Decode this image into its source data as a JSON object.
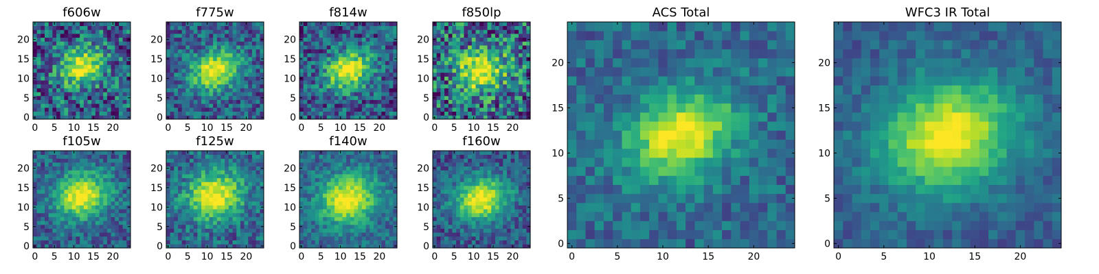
{
  "chart_data": [
    {
      "type": "heatmap",
      "title": "f606w",
      "x_ticks": [
        "0",
        "5",
        "10",
        "15",
        "20"
      ],
      "y_ticks": [
        "0",
        "5",
        "10",
        "15",
        "20"
      ],
      "xlim": [
        -0.5,
        24.5
      ],
      "ylim": [
        -0.5,
        24.5
      ],
      "grid": false,
      "colormap": "viridis",
      "peak": [
        12,
        13
      ],
      "sigma": [
        4.2,
        3.2
      ],
      "tilt": 0.45,
      "noise": 0.34,
      "bg": 0.32,
      "seed": 11
    },
    {
      "type": "heatmap",
      "title": "f775w",
      "x_ticks": [
        "0",
        "5",
        "10",
        "15",
        "20"
      ],
      "y_ticks": [
        "0",
        "5",
        "10",
        "15",
        "20"
      ],
      "xlim": [
        -0.5,
        24.5
      ],
      "ylim": [
        -0.5,
        24.5
      ],
      "grid": false,
      "colormap": "viridis",
      "peak": [
        12,
        12
      ],
      "sigma": [
        4.6,
        3.4
      ],
      "tilt": 0.45,
      "noise": 0.24,
      "bg": 0.3,
      "seed": 23
    },
    {
      "type": "heatmap",
      "title": "f814w",
      "x_ticks": [
        "0",
        "5",
        "10",
        "15",
        "20"
      ],
      "y_ticks": [
        "0",
        "5",
        "10",
        "15",
        "20"
      ],
      "xlim": [
        -0.5,
        24.5
      ],
      "ylim": [
        -0.5,
        24.5
      ],
      "grid": false,
      "colormap": "viridis",
      "peak": [
        12,
        12
      ],
      "sigma": [
        4.4,
        3.4
      ],
      "tilt": 0.45,
      "noise": 0.28,
      "bg": 0.28,
      "seed": 37
    },
    {
      "type": "heatmap",
      "title": "f850lp",
      "x_ticks": [
        "0",
        "5",
        "10",
        "15",
        "20"
      ],
      "y_ticks": [
        "0",
        "5",
        "10",
        "15",
        "20"
      ],
      "xlim": [
        -0.5,
        24.5
      ],
      "ylim": [
        -0.5,
        24.5
      ],
      "grid": false,
      "colormap": "viridis",
      "peak": [
        12,
        12
      ],
      "sigma": [
        4.6,
        3.8
      ],
      "tilt": 0.3,
      "noise": 0.4,
      "bg": 0.34,
      "seed": 41
    },
    {
      "type": "heatmap",
      "title": "f105w",
      "x_ticks": [
        "0",
        "5",
        "10",
        "15",
        "20"
      ],
      "y_ticks": [
        "0",
        "5",
        "10",
        "15",
        "20"
      ],
      "xlim": [
        -0.5,
        24.5
      ],
      "ylim": [
        -0.5,
        24.5
      ],
      "grid": false,
      "colormap": "viridis",
      "peak": [
        12,
        13
      ],
      "sigma": [
        5.0,
        4.2
      ],
      "tilt": 0.3,
      "noise": 0.2,
      "bg": 0.3,
      "seed": 53
    },
    {
      "type": "heatmap",
      "title": "f125w",
      "x_ticks": [
        "0",
        "5",
        "10",
        "15",
        "20"
      ],
      "y_ticks": [
        "0",
        "5",
        "10",
        "15",
        "20"
      ],
      "xlim": [
        -0.5,
        24.5
      ],
      "ylim": [
        -0.5,
        24.5
      ],
      "grid": false,
      "colormap": "viridis",
      "peak": [
        12,
        13
      ],
      "sigma": [
        5.2,
        4.4
      ],
      "tilt": 0.3,
      "noise": 0.22,
      "bg": 0.32,
      "seed": 67
    },
    {
      "type": "heatmap",
      "title": "f140w",
      "x_ticks": [
        "0",
        "5",
        "10",
        "15",
        "20"
      ],
      "y_ticks": [
        "0",
        "5",
        "10",
        "15",
        "20"
      ],
      "xlim": [
        -0.5,
        24.5
      ],
      "ylim": [
        -0.5,
        24.5
      ],
      "grid": false,
      "colormap": "viridis",
      "peak": [
        12,
        12
      ],
      "sigma": [
        5.2,
        4.4
      ],
      "tilt": 0.3,
      "noise": 0.18,
      "bg": 0.34,
      "seed": 71
    },
    {
      "type": "heatmap",
      "title": "f160w",
      "x_ticks": [
        "0",
        "5",
        "10",
        "15",
        "20"
      ],
      "y_ticks": [
        "0",
        "5",
        "10",
        "15",
        "20"
      ],
      "xlim": [
        -0.5,
        24.5
      ],
      "ylim": [
        -0.5,
        24.5
      ],
      "grid": false,
      "colormap": "viridis",
      "peak": [
        12,
        12
      ],
      "sigma": [
        5.0,
        4.0
      ],
      "tilt": 0.3,
      "noise": 0.2,
      "bg": 0.26,
      "seed": 83
    },
    {
      "type": "heatmap",
      "title": "ACS Total",
      "x_ticks": [
        "0",
        "5",
        "10",
        "15",
        "20"
      ],
      "y_ticks": [
        "0",
        "5",
        "10",
        "15",
        "20"
      ],
      "xlim": [
        -0.5,
        24.5
      ],
      "ylim": [
        -0.5,
        24.5
      ],
      "grid": false,
      "colormap": "viridis",
      "peak": [
        12,
        12
      ],
      "sigma": [
        4.4,
        3.2
      ],
      "tilt": 0.45,
      "noise": 0.16,
      "bg": 0.34,
      "seed": 97
    },
    {
      "type": "heatmap",
      "title": "WFC3 IR Total",
      "x_ticks": [
        "0",
        "5",
        "10",
        "15",
        "20"
      ],
      "y_ticks": [
        "0",
        "5",
        "10",
        "15",
        "20"
      ],
      "xlim": [
        -0.5,
        24.5
      ],
      "ylim": [
        -0.5,
        24.5
      ],
      "grid": false,
      "colormap": "viridis",
      "peak": [
        12,
        12
      ],
      "sigma": [
        5.4,
        4.2
      ],
      "tilt": 0.3,
      "noise": 0.12,
      "bg": 0.3,
      "seed": 101
    }
  ]
}
